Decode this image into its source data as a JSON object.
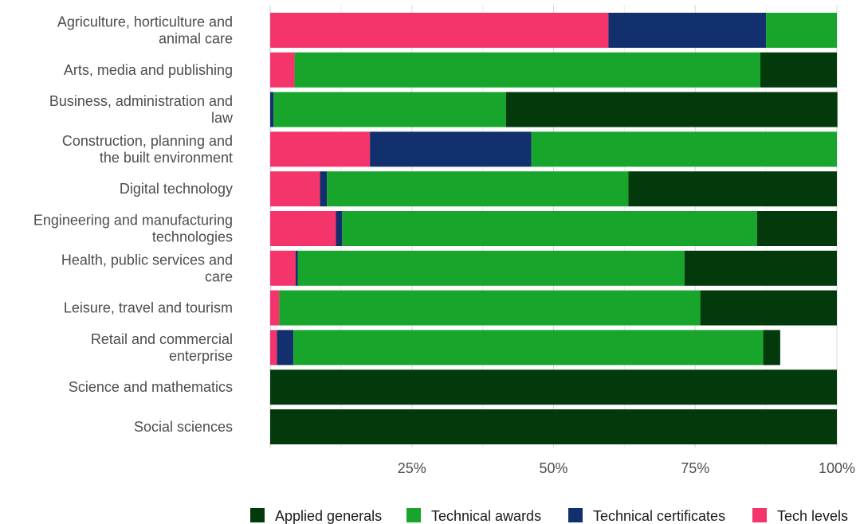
{
  "chart_data": {
    "type": "bar",
    "orientation": "horizontal",
    "stacked": true,
    "categories": [
      "Agriculture, horticulture and animal care",
      "Arts, media and publishing",
      "Business, administration and law",
      "Construction, planning and the built environment",
      "Digital technology",
      "Engineering and manufacturing technologies",
      "Health, public services and care",
      "Leisure, travel and tourism",
      "Retail and commercial enterprise",
      "Science and mathematics",
      "Social sciences"
    ],
    "category_label_lines": [
      [
        "Agriculture, horticulture and",
        "animal care"
      ],
      [
        "Arts, media and publishing"
      ],
      [
        "Business, administration and",
        "law"
      ],
      [
        "Construction, planning and",
        "the built environment"
      ],
      [
        "Digital technology"
      ],
      [
        "Engineering and manufacturing",
        "technologies"
      ],
      [
        "Health, public services and",
        "care"
      ],
      [
        "Leisure, travel and tourism"
      ],
      [
        "Retail and commercial",
        "enterprise"
      ],
      [
        "Science and mathematics"
      ],
      [
        "Social sciences"
      ]
    ],
    "stack_order": [
      "Tech levels",
      "Technical certificates",
      "Technical awards",
      "Applied generals"
    ],
    "series": [
      {
        "name": "Applied generals",
        "color": "#033a0c",
        "values": [
          0,
          13.5,
          58.5,
          0,
          36.8,
          14.1,
          26.9,
          24.1,
          3.0,
          100,
          100
        ]
      },
      {
        "name": "Technical awards",
        "color": "#17a52b",
        "values": [
          12.5,
          82.2,
          41.0,
          53.9,
          53.2,
          73.2,
          68.2,
          74.3,
          82.9,
          0,
          0
        ]
      },
      {
        "name": "Technical certificates",
        "color": "#12306d",
        "values": [
          27.8,
          0,
          0.6,
          28.5,
          1.2,
          1.1,
          0.4,
          0,
          2.9,
          0,
          0
        ]
      },
      {
        "name": "Tech levels",
        "color": "#f4356c",
        "values": [
          59.7,
          4.3,
          0,
          17.6,
          8.8,
          11.6,
          4.5,
          1.6,
          1.2,
          0,
          0
        ]
      }
    ],
    "x_ticks": [
      "25%",
      "50%",
      "75%",
      "100%"
    ],
    "x_tick_values": [
      25,
      50,
      75,
      100
    ],
    "xlim": [
      0,
      100
    ],
    "grid": true,
    "legend_position": "bottom-right"
  }
}
